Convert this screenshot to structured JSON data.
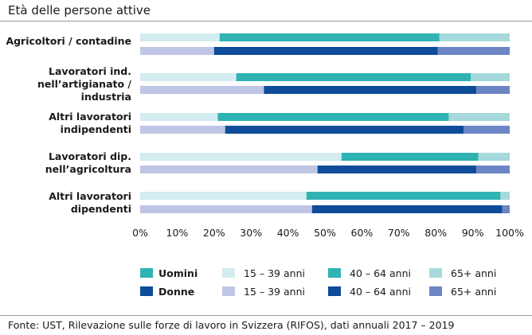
{
  "title": "Età delle persone attive",
  "source": "Fonte: UST, Rilevazione sulle forze di lavoro in Svizzera (RIFOS), dati annuali 2017 – 2019",
  "chart_data": {
    "type": "bar",
    "orientation": "horizontal",
    "stacked": "percent",
    "xlim": [
      0,
      100
    ],
    "ticks": [
      "0%",
      "10%",
      "20%",
      "30%",
      "40%",
      "50%",
      "60%",
      "70%",
      "80%",
      "90%",
      "100%"
    ],
    "categories": [
      [
        "Agricoltori / contadine"
      ],
      [
        "Lavoratori ind.",
        "nell’artigianato /",
        "industria"
      ],
      [
        "Altri lavoratori",
        "indipendenti"
      ],
      [
        "Lavoratori dip.",
        "nell’agricoltura"
      ],
      [
        "Altri lavoratori",
        "dipendenti"
      ]
    ],
    "groups": [
      {
        "name": "Uomini",
        "colors": [
          "#d2ecef",
          "#2fb3b3",
          "#a6d9db"
        ],
        "rows": [
          [
            21.5,
            59.5,
            19.0
          ],
          [
            26.0,
            63.5,
            10.5
          ],
          [
            21.0,
            62.5,
            16.5
          ],
          [
            54.5,
            37.0,
            8.5
          ],
          [
            45.0,
            52.5,
            2.5
          ]
        ]
      },
      {
        "name": "Donne",
        "colors": [
          "#bfc6e5",
          "#0f4c99",
          "#6c85c5"
        ],
        "rows": [
          [
            20.0,
            60.5,
            19.5
          ],
          [
            33.5,
            57.5,
            9.0
          ],
          [
            23.0,
            64.5,
            12.5
          ],
          [
            48.0,
            43.0,
            9.0
          ],
          [
            46.5,
            51.5,
            2.0
          ]
        ]
      }
    ],
    "series": [
      "15 – 39 anni",
      "40 – 64 anni",
      "65+ anni"
    ],
    "legend": {
      "groups": [
        "Uomini",
        "Donne"
      ],
      "labels": [
        "15 – 39 anni",
        "40 – 64 anni",
        "65+ anni"
      ]
    }
  }
}
